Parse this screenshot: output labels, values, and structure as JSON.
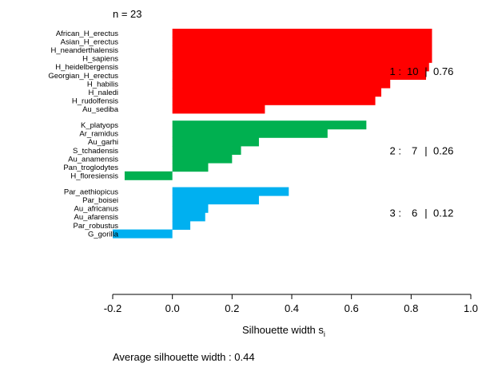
{
  "n_label": "n = 23",
  "footer": "Average silhouette width :  0.44",
  "chart_data": {
    "type": "bar",
    "orientation": "horizontal",
    "xlabel": "Silhouette width s",
    "xlabel_subscript": "i",
    "xlim": [
      -0.2,
      1.0
    ],
    "xticks": [
      "-0.2",
      "0.0",
      "0.2",
      "0.4",
      "0.6",
      "0.8",
      "1.0"
    ],
    "grid": false,
    "clusters": [
      {
        "id": 1,
        "size": 10,
        "avg": "0.76",
        "color": "#ff0000",
        "annotation": {
          "cluster": "1 :",
          "size": "10",
          "sep": "|",
          "avg": "0.76"
        },
        "members": [
          {
            "name": "African_H_erectus",
            "value": 0.87
          },
          {
            "name": "Asian_H_erectus",
            "value": 0.87
          },
          {
            "name": "H_neanderthalensis",
            "value": 0.87
          },
          {
            "name": "H_sapiens",
            "value": 0.87
          },
          {
            "name": "H_heidelbergensis",
            "value": 0.86
          },
          {
            "name": "Georgian_H_erectus",
            "value": 0.85
          },
          {
            "name": "H_habilis",
            "value": 0.73
          },
          {
            "name": "H_naledi",
            "value": 0.7
          },
          {
            "name": "H_rudolfensis",
            "value": 0.68
          },
          {
            "name": "Au_sediba",
            "value": 0.31
          }
        ]
      },
      {
        "id": 2,
        "size": 7,
        "avg": "0.26",
        "color": "#00b050",
        "annotation": {
          "cluster": "2 :",
          "size": "7",
          "sep": "|",
          "avg": "0.26"
        },
        "members": [
          {
            "name": "K_platyops",
            "value": 0.65
          },
          {
            "name": "Ar_ramidus",
            "value": 0.52
          },
          {
            "name": "Au_garhi",
            "value": 0.29
          },
          {
            "name": "S_tchadensis",
            "value": 0.23
          },
          {
            "name": "Au_anamensis",
            "value": 0.2
          },
          {
            "name": "Pan_troglodytes",
            "value": 0.12
          },
          {
            "name": "H_floresiensis",
            "value": -0.16
          }
        ]
      },
      {
        "id": 3,
        "size": 6,
        "avg": "0.12",
        "color": "#00b0f0",
        "annotation": {
          "cluster": "3 :",
          "size": "6",
          "sep": "|",
          "avg": "0.12"
        },
        "members": [
          {
            "name": "Par_aethiopicus",
            "value": 0.39
          },
          {
            "name": "Par_boisei",
            "value": 0.29
          },
          {
            "name": "Au_africanus",
            "value": 0.12
          },
          {
            "name": "Au_afarensis",
            "value": 0.11
          },
          {
            "name": "Par_robustus",
            "value": 0.06
          },
          {
            "name": "G_gorilla",
            "value": -0.2
          }
        ]
      }
    ]
  }
}
